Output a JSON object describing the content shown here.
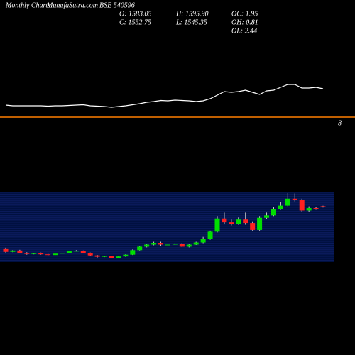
{
  "chart_data": {
    "type": "candlestick",
    "title": "Monthly Charts",
    "site": "MunafaSutra.com",
    "symbol": "BSE 540596",
    "ohlc_labels": [
      "O: 1583.05",
      "H: 1595.90",
      "OC: 1.95",
      "C: 1552.75",
      "L: 1545.35",
      "OH: 0.81",
      "OL: 2.44"
    ],
    "annotation": "8",
    "ylim": [
      0,
      2000
    ],
    "up_color": "#00e000",
    "down_color": "#ff2020",
    "open": [
      370,
      270,
      310,
      240,
      210,
      230,
      200,
      180,
      220,
      240,
      290,
      300,
      240,
      170,
      130,
      150,
      100,
      140,
      190,
      320,
      420,
      480,
      530,
      480,
      480,
      510,
      420,
      480,
      540,
      650,
      850,
      1230,
      1120,
      1080,
      1200,
      1100,
      900,
      1250,
      1320,
      1500,
      1600,
      1800,
      1760,
      1460,
      1530,
      1583.05
    ],
    "close": [
      270,
      310,
      240,
      210,
      230,
      200,
      180,
      220,
      240,
      290,
      300,
      240,
      170,
      130,
      150,
      100,
      140,
      190,
      320,
      420,
      480,
      530,
      480,
      480,
      510,
      420,
      480,
      540,
      650,
      850,
      1230,
      1120,
      1080,
      1200,
      1100,
      900,
      1250,
      1320,
      1500,
      1600,
      1800,
      1760,
      1460,
      1530,
      1500,
      1552.75
    ],
    "high": [
      390,
      320,
      330,
      260,
      240,
      250,
      220,
      230,
      250,
      300,
      320,
      310,
      250,
      180,
      160,
      160,
      150,
      200,
      340,
      440,
      500,
      560,
      560,
      500,
      520,
      530,
      490,
      560,
      700,
      880,
      1300,
      1400,
      1200,
      1260,
      1400,
      1150,
      1300,
      1400,
      1560,
      1700,
      1960,
      1950,
      1800,
      1580,
      1560,
      1595.9
    ],
    "low": [
      250,
      260,
      230,
      190,
      200,
      190,
      160,
      170,
      210,
      230,
      280,
      230,
      160,
      110,
      120,
      90,
      90,
      130,
      180,
      310,
      400,
      460,
      440,
      460,
      470,
      410,
      400,
      470,
      520,
      620,
      830,
      1060,
      1030,
      1050,
      1050,
      880,
      880,
      1220,
      1300,
      1480,
      1580,
      1720,
      1420,
      1420,
      1480,
      1545.35
    ],
    "line": {
      "color": "#ffffff",
      "y2lim": [
        0,
        100
      ],
      "values": [
        24,
        22,
        22,
        22,
        22,
        22,
        21,
        22,
        22,
        23,
        24,
        25,
        22,
        21,
        20,
        18,
        20,
        22,
        25,
        28,
        32,
        34,
        37,
        36,
        38,
        37,
        36,
        34,
        36,
        42,
        52,
        62,
        60,
        62,
        66,
        60,
        54,
        64,
        66,
        74,
        82,
        82,
        72,
        72,
        74,
        70
      ]
    },
    "reference_color": "#ff7f00"
  }
}
